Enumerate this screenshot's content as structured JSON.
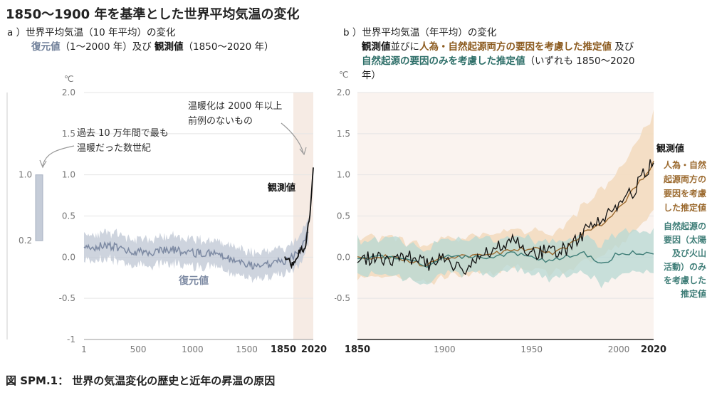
{
  "title": "1850～1900 年を基準とした世界平均気温の変化",
  "panel_a": {
    "heading_1": "a ）世界平均気温（10 年平均）の変化",
    "heading_2_recon": "復元値",
    "heading_2_mid": "（1～2000 年）及び",
    "heading_2_obs": "観測値",
    "heading_2_end": "（1850～2020 年）",
    "unit": "℃",
    "annotation_left": [
      "過去 10 万年間で最も",
      "温暖だった数世紀"
    ],
    "annotation_right": [
      "温暖化は 2000 年以上",
      "前例のないもの"
    ],
    "range_bar_top": "1.0",
    "range_bar_bottom": "0.2",
    "label_observed": "観測値",
    "label_reconstructed": "復元値"
  },
  "panel_b": {
    "heading_1": "b ）世界平均気温（年平均）の変化",
    "heading_2_obs": "観測値",
    "heading_2_mid": "並びに",
    "heading_2_hum": "人為・自然起源両方の要因を考慮した推定値",
    "heading_2_end": "及び",
    "heading_3_nat": "自然起源の要因のみを考慮した推定値",
    "heading_3_end": "（いずれも 1850～2020",
    "heading_4": "年）",
    "unit": "℃",
    "label_observed": "観測値",
    "label_human": [
      "人為・自然",
      "起源両方の",
      "要因を考慮",
      "した推定値"
    ],
    "label_natural": [
      "自然起源の",
      "要因（太陽",
      "及び火山",
      "活動）のみ",
      "を考慮した",
      "推定値"
    ]
  },
  "caption": "図 SPM.1： 世界の気温変化の歴史と近年の昇温の原因",
  "colors": {
    "reconstructed": "#7d8aa3",
    "reconstructed_band": "#c5ccd8",
    "observed": "#111111",
    "human": "#9b6a2f",
    "human_band": "#f3dcc0",
    "natural": "#3e7d77",
    "natural_band": "#b7d8d3",
    "shade": "#f6ebe4",
    "grid": "#e5e5e5"
  },
  "chart_data": [
    {
      "type": "line",
      "title": "世界平均気温（10 年平均）の変化",
      "ylabel": "℃",
      "ylim": [
        -1,
        2
      ],
      "xlim": [
        1,
        2020
      ],
      "x_ticks": [
        "1",
        "500",
        "1000",
        "1500",
        "1850",
        "2020"
      ],
      "y_ticks": [
        "2.0",
        "1.5",
        "1.0",
        "0.5",
        "0.0",
        "-0.5",
        "-1"
      ],
      "grid": true,
      "series": [
        {
          "name": "復元値",
          "x": [
            1,
            200,
            400,
            600,
            800,
            1000,
            1200,
            1400,
            1500,
            1600,
            1700,
            1800,
            1850,
            1900,
            1950,
            2000
          ],
          "values": [
            0.1,
            0.15,
            0.08,
            0.05,
            0.1,
            0.05,
            0.05,
            -0.05,
            -0.1,
            -0.1,
            -0.08,
            -0.05,
            -0.05,
            0.0,
            0.1,
            0.4
          ]
        },
        {
          "name": "観測値",
          "x": [
            1850,
            1870,
            1890,
            1910,
            1930,
            1950,
            1970,
            1990,
            2000,
            2010,
            2020
          ],
          "values": [
            0.0,
            -0.02,
            -0.08,
            -0.1,
            0.05,
            0.1,
            0.1,
            0.4,
            0.55,
            0.8,
            1.09
          ]
        }
      ],
      "annotations": [
        "過去 10 万年間で最も温暖だった数世紀: 0.2～1.0 ℃",
        "温暖化は 2000 年以上前例のないもの"
      ]
    },
    {
      "type": "line",
      "title": "世界平均気温（年平均）の変化",
      "ylabel": "℃",
      "ylim": [
        -1,
        2
      ],
      "xlim": [
        1850,
        2020
      ],
      "x_ticks": [
        "1850",
        "1900",
        "1950",
        "2000",
        "2020"
      ],
      "y_ticks": [
        "2.0",
        "1.5",
        "1.0",
        "0.5",
        "0.0",
        "-0.5"
      ],
      "grid": true,
      "series": [
        {
          "name": "観測値",
          "x": [
            1850,
            1860,
            1870,
            1880,
            1890,
            1900,
            1910,
            1920,
            1930,
            1940,
            1950,
            1960,
            1970,
            1980,
            1990,
            2000,
            2010,
            2020
          ],
          "values": [
            -0.05,
            0.0,
            -0.05,
            0.0,
            -0.1,
            0.0,
            -0.15,
            0.0,
            0.1,
            0.25,
            0.05,
            0.08,
            0.1,
            0.3,
            0.45,
            0.6,
            0.85,
            1.2
          ]
        },
        {
          "name": "人為・自然起源両方の要因を考慮した推定値",
          "x": [
            1850,
            1860,
            1870,
            1880,
            1890,
            1900,
            1910,
            1920,
            1930,
            1940,
            1950,
            1960,
            1970,
            1980,
            1990,
            2000,
            2010,
            2020
          ],
          "values": [
            0.0,
            0.0,
            0.0,
            -0.05,
            -0.1,
            0.0,
            0.0,
            0.05,
            0.05,
            0.1,
            0.1,
            0.05,
            0.1,
            0.3,
            0.4,
            0.6,
            0.85,
            1.15
          ]
        },
        {
          "name": "自然起源の要因のみを考慮した推定値",
          "x": [
            1850,
            1860,
            1870,
            1880,
            1890,
            1900,
            1910,
            1920,
            1930,
            1940,
            1950,
            1960,
            1970,
            1980,
            1990,
            2000,
            2010,
            2020
          ],
          "values": [
            0.0,
            0.0,
            0.0,
            -0.05,
            -0.1,
            0.0,
            0.0,
            0.0,
            0.0,
            0.05,
            0.02,
            -0.05,
            0.0,
            0.05,
            -0.1,
            0.05,
            0.05,
            0.05
          ]
        }
      ]
    }
  ]
}
